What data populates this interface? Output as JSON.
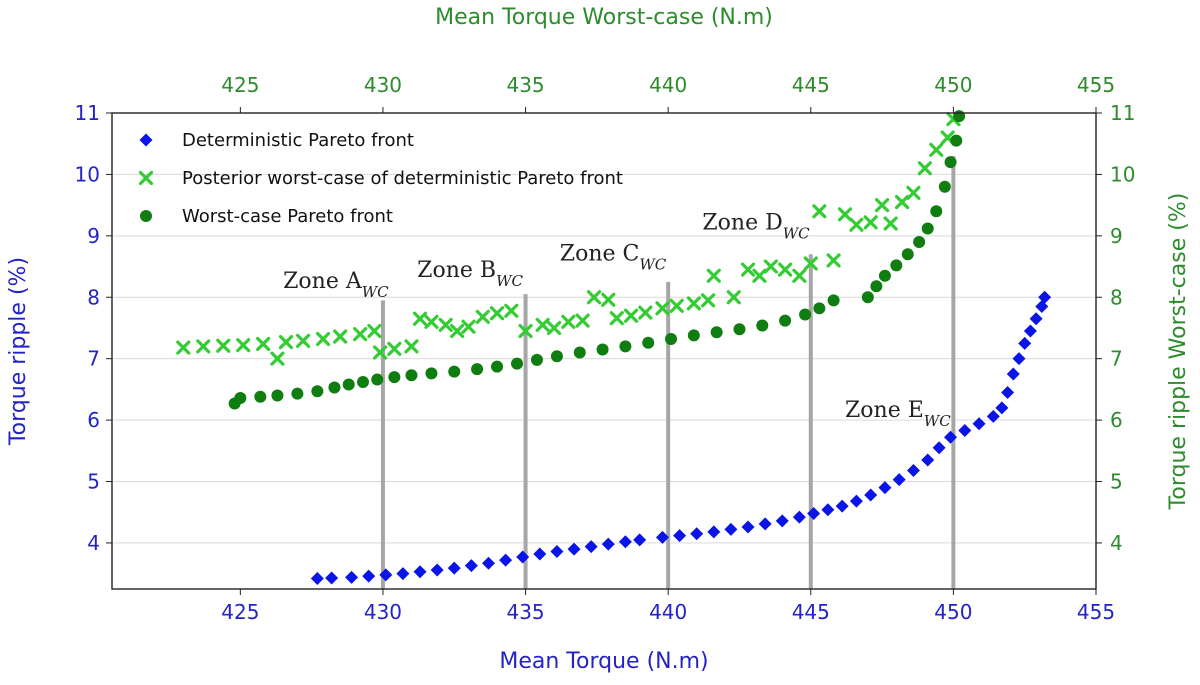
{
  "chart_data": {
    "type": "scatter",
    "xlabel": "Mean Torque (N.m)",
    "ylabel": "Torque ripple (%)",
    "x2label": "Mean Torque Worst-case (N.m)",
    "y2label": "Torque ripple Worst-case (%)",
    "xlim": [
      420.5,
      455
    ],
    "ylim": [
      3.25,
      11
    ],
    "xticks": [
      425,
      430,
      435,
      440,
      445,
      450,
      455
    ],
    "yticks": [
      4,
      5,
      6,
      7,
      8,
      9,
      10,
      11
    ],
    "grid": "horizontal",
    "legend": "top-left",
    "colors": {
      "primary_axis": "#2323c8",
      "secondary_axis": "#2e8b2e",
      "deterministic": "#0a14e6",
      "posterior": "#33cc33",
      "worstcase": "#0f7d0f",
      "zone_line": "#a6a6a6"
    },
    "series": [
      {
        "name": "Deterministic Pareto front",
        "marker": "diamond",
        "points": [
          [
            427.7,
            3.42
          ],
          [
            428.2,
            3.43
          ],
          [
            428.9,
            3.44
          ],
          [
            429.5,
            3.46
          ],
          [
            430.1,
            3.48
          ],
          [
            430.7,
            3.5
          ],
          [
            431.3,
            3.53
          ],
          [
            431.9,
            3.56
          ],
          [
            432.5,
            3.59
          ],
          [
            433.1,
            3.63
          ],
          [
            433.7,
            3.67
          ],
          [
            434.3,
            3.72
          ],
          [
            434.9,
            3.77
          ],
          [
            435.5,
            3.82
          ],
          [
            436.1,
            3.86
          ],
          [
            436.7,
            3.9
          ],
          [
            437.3,
            3.94
          ],
          [
            437.9,
            3.98
          ],
          [
            438.5,
            4.02
          ],
          [
            439.0,
            4.05
          ],
          [
            439.8,
            4.09
          ],
          [
            440.4,
            4.12
          ],
          [
            441.0,
            4.15
          ],
          [
            441.6,
            4.18
          ],
          [
            442.2,
            4.22
          ],
          [
            442.8,
            4.26
          ],
          [
            443.4,
            4.31
          ],
          [
            444.0,
            4.36
          ],
          [
            444.6,
            4.42
          ],
          [
            445.1,
            4.48
          ],
          [
            445.6,
            4.54
          ],
          [
            446.1,
            4.6
          ],
          [
            446.6,
            4.68
          ],
          [
            447.1,
            4.78
          ],
          [
            447.6,
            4.9
          ],
          [
            448.1,
            5.03
          ],
          [
            448.6,
            5.18
          ],
          [
            449.1,
            5.35
          ],
          [
            449.5,
            5.55
          ],
          [
            449.9,
            5.72
          ],
          [
            450.4,
            5.83
          ],
          [
            450.9,
            5.94
          ],
          [
            451.4,
            6.06
          ],
          [
            451.7,
            6.2
          ],
          [
            451.9,
            6.45
          ],
          [
            452.1,
            6.75
          ],
          [
            452.3,
            7.0
          ],
          [
            452.5,
            7.25
          ],
          [
            452.7,
            7.45
          ],
          [
            452.9,
            7.65
          ],
          [
            453.1,
            7.85
          ],
          [
            453.2,
            8.0
          ]
        ]
      },
      {
        "name": "Posterior worst-case of deterministic Pareto front",
        "marker": "x",
        "points": [
          [
            423.0,
            7.18
          ],
          [
            423.7,
            7.2
          ],
          [
            424.4,
            7.21
          ],
          [
            425.1,
            7.22
          ],
          [
            425.8,
            7.24
          ],
          [
            426.3,
            7.0
          ],
          [
            426.6,
            7.27
          ],
          [
            427.2,
            7.29
          ],
          [
            427.9,
            7.32
          ],
          [
            428.5,
            7.36
          ],
          [
            429.2,
            7.4
          ],
          [
            429.7,
            7.45
          ],
          [
            429.9,
            7.1
          ],
          [
            430.4,
            7.16
          ],
          [
            431.0,
            7.2
          ],
          [
            431.3,
            7.65
          ],
          [
            431.7,
            7.6
          ],
          [
            432.2,
            7.55
          ],
          [
            432.6,
            7.45
          ],
          [
            433.0,
            7.52
          ],
          [
            433.5,
            7.68
          ],
          [
            434.0,
            7.74
          ],
          [
            434.5,
            7.78
          ],
          [
            435.0,
            7.45
          ],
          [
            435.6,
            7.55
          ],
          [
            436.0,
            7.5
          ],
          [
            436.5,
            7.6
          ],
          [
            437.0,
            7.62
          ],
          [
            437.4,
            8.0
          ],
          [
            437.9,
            7.96
          ],
          [
            438.2,
            7.66
          ],
          [
            438.7,
            7.7
          ],
          [
            439.2,
            7.75
          ],
          [
            439.8,
            7.82
          ],
          [
            440.3,
            7.86
          ],
          [
            440.9,
            7.9
          ],
          [
            441.4,
            7.95
          ],
          [
            441.6,
            8.35
          ],
          [
            442.3,
            8.0
          ],
          [
            442.8,
            8.45
          ],
          [
            443.2,
            8.35
          ],
          [
            443.6,
            8.5
          ],
          [
            444.1,
            8.45
          ],
          [
            444.6,
            8.35
          ],
          [
            445.0,
            8.55
          ],
          [
            445.3,
            9.4
          ],
          [
            445.8,
            8.6
          ],
          [
            446.2,
            9.35
          ],
          [
            446.6,
            9.18
          ],
          [
            447.1,
            9.22
          ],
          [
            447.5,
            9.5
          ],
          [
            447.8,
            9.2
          ],
          [
            448.2,
            9.55
          ],
          [
            448.6,
            9.7
          ],
          [
            449.0,
            10.1
          ],
          [
            449.4,
            10.4
          ],
          [
            449.8,
            10.6
          ],
          [
            450.0,
            10.9
          ]
        ]
      },
      {
        "name": "Worst-case Pareto front",
        "marker": "circle",
        "points": [
          [
            424.8,
            6.27
          ],
          [
            425.0,
            6.36
          ],
          [
            425.7,
            6.38
          ],
          [
            426.3,
            6.4
          ],
          [
            427.0,
            6.43
          ],
          [
            427.7,
            6.47
          ],
          [
            428.3,
            6.53
          ],
          [
            428.8,
            6.58
          ],
          [
            429.3,
            6.62
          ],
          [
            429.8,
            6.66
          ],
          [
            430.4,
            6.7
          ],
          [
            431.0,
            6.73
          ],
          [
            431.7,
            6.76
          ],
          [
            432.5,
            6.79
          ],
          [
            433.3,
            6.83
          ],
          [
            434.0,
            6.87
          ],
          [
            434.7,
            6.92
          ],
          [
            435.4,
            6.98
          ],
          [
            436.1,
            7.04
          ],
          [
            436.9,
            7.1
          ],
          [
            437.7,
            7.15
          ],
          [
            438.5,
            7.2
          ],
          [
            439.3,
            7.26
          ],
          [
            440.1,
            7.32
          ],
          [
            440.9,
            7.38
          ],
          [
            441.7,
            7.43
          ],
          [
            442.5,
            7.48
          ],
          [
            443.3,
            7.54
          ],
          [
            444.1,
            7.62
          ],
          [
            444.8,
            7.72
          ],
          [
            445.3,
            7.82
          ],
          [
            445.8,
            7.95
          ],
          [
            447.0,
            8.0
          ],
          [
            447.3,
            8.18
          ],
          [
            447.6,
            8.35
          ],
          [
            448.0,
            8.52
          ],
          [
            448.4,
            8.7
          ],
          [
            448.8,
            8.9
          ],
          [
            449.1,
            9.12
          ],
          [
            449.4,
            9.4
          ],
          [
            449.7,
            9.8
          ],
          [
            449.9,
            10.2
          ],
          [
            450.1,
            10.55
          ],
          [
            450.2,
            10.95
          ]
        ]
      }
    ],
    "zones": [
      {
        "x": 430,
        "y_top": 7.95,
        "label": "Zone A",
        "sub": "WC",
        "label_x": 426.5,
        "label_y": 8.15
      },
      {
        "x": 435,
        "y_top": 8.05,
        "label": "Zone B",
        "sub": "WC",
        "label_x": 431.2,
        "label_y": 8.33
      },
      {
        "x": 440,
        "y_top": 8.25,
        "label": "Zone C",
        "sub": "WC",
        "label_x": 436.2,
        "label_y": 8.6
      },
      {
        "x": 445,
        "y_top": 8.7,
        "label": "Zone D",
        "sub": "WC",
        "label_x": 441.2,
        "label_y": 9.1
      },
      {
        "x": 450,
        "y_top": 10.3,
        "label": "Zone E",
        "sub": "WC",
        "label_x": 446.2,
        "label_y": 6.05
      }
    ]
  }
}
